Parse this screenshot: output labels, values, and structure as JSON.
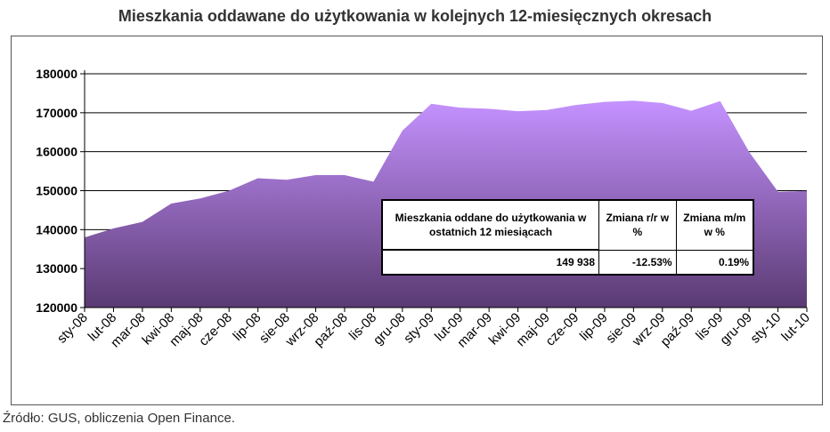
{
  "title": "Mieszkania oddawane do użytkowania w kolejnych 12-miesięcznych okresach",
  "source": "Źródło: GUS, obliczenia Open Finance.",
  "colors": {
    "area_top": "#c592ff",
    "area_bottom": "#5a3a72",
    "grid": "#000000"
  },
  "info_table": {
    "headers": [
      "Mieszkania oddane do użytkowania w ostatnich 12 miesiącach",
      "Zmiana r/r w %",
      "Zmiana m/m w %"
    ],
    "values": [
      "149 938",
      "-12.53%",
      "0.19%"
    ]
  },
  "chart_data": {
    "type": "area",
    "title": "Mieszkania oddawane do użytkowania w kolejnych 12-miesięcznych okresach",
    "xlabel": "",
    "ylabel": "",
    "ylim": [
      120000,
      180000
    ],
    "yticks": [
      "120000",
      "130000",
      "140000",
      "150000",
      "160000",
      "170000",
      "180000"
    ],
    "grid": true,
    "categories": [
      "sty-08",
      "lut-08",
      "mar-08",
      "kwi-08",
      "maj-08",
      "cze-08",
      "lip-08",
      "sie-08",
      "wrz-08",
      "paź-08",
      "lis-08",
      "gru-08",
      "sty-09",
      "lut-09",
      "mar-09",
      "kwi-09",
      "maj-09",
      "cze-09",
      "lip-09",
      "sie-09",
      "wrz-09",
      "paź-09",
      "lis-09",
      "gru-09",
      "sty-10",
      "lut-10"
    ],
    "values": [
      138000,
      140300,
      142000,
      146700,
      148000,
      150000,
      153200,
      152800,
      154000,
      154000,
      152300,
      165400,
      172300,
      171300,
      171000,
      170400,
      170700,
      172000,
      172800,
      173100,
      172500,
      170500,
      173000,
      160000,
      149700,
      149938
    ]
  }
}
